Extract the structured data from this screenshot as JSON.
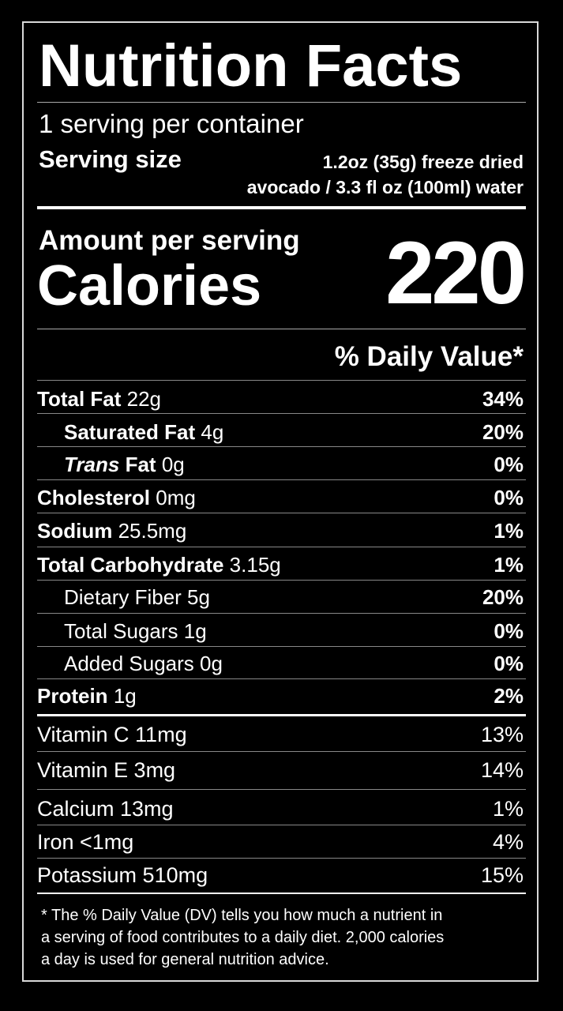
{
  "title": "Nutrition Facts",
  "servings_per_container": "1 serving per container",
  "serving_size": {
    "label": "Serving size",
    "value_line1": "1.2oz (35g) freeze dried",
    "value_line2": "avocado / 3.3 fl oz (100ml) water"
  },
  "amount_per_serving": "Amount per serving",
  "calories": {
    "label": "Calories",
    "value": "220"
  },
  "daily_value_header": "% Daily Value*",
  "nutrients": [
    {
      "name": "Total Fat",
      "amount": "22g",
      "dv": "34%"
    },
    {
      "name": "Saturated Fat",
      "amount": "4g",
      "dv": "20%"
    },
    {
      "name_italic": "Trans",
      "name": "Fat",
      "amount": "0g",
      "dv": "0%"
    },
    {
      "name": "Cholesterol",
      "amount": "0mg",
      "dv": "0%"
    },
    {
      "name": "Sodium",
      "amount": "25.5mg",
      "dv": "1%"
    },
    {
      "name": "Total Carbohydrate",
      "amount": "3.15g",
      "dv": "1%"
    },
    {
      "name": "Dietary Fiber 5g",
      "dv": "20%"
    },
    {
      "name": "Total Sugars 1g",
      "dv": "0%"
    },
    {
      "name": "Added Sugars 0g",
      "dv": "0%"
    },
    {
      "name": "Protein",
      "amount": "1g",
      "dv": "2%"
    }
  ],
  "vitamins": [
    {
      "label": "Vitamin C 11mg",
      "dv": "13%"
    },
    {
      "label": "Vitamin E 3mg",
      "dv": "14%"
    },
    {
      "label": "Calcium 13mg",
      "dv": "1%"
    },
    {
      "label": "Iron <1mg",
      "dv": "4%"
    },
    {
      "label": "Potassium 510mg",
      "dv": "15%"
    }
  ],
  "footnote": {
    "line1": "* The % Daily Value (DV) tells you how much a nutrient in",
    "line2": "a serving of food contributes to a daily diet. 2,000 calories",
    "line3": "a day is used for general nutrition advice."
  }
}
